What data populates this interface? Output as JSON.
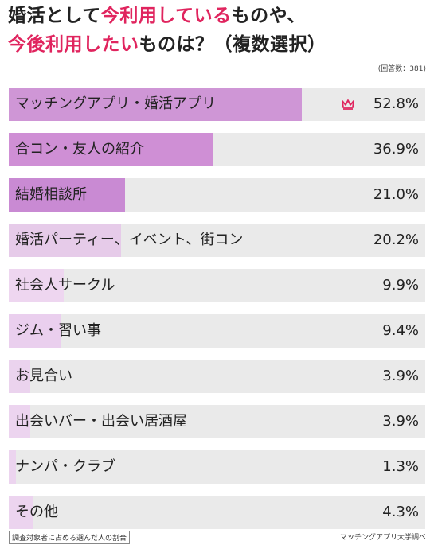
{
  "title": {
    "line1_pre": "婚活として",
    "line1_highlight": "今利用している",
    "line1_post": "ものや、",
    "line2_highlight": "今後利用したい",
    "line2_post": "ものは？（複数選択）"
  },
  "respondents_note": "(回答数：381)",
  "footnote": "調査対象者に占める選んだ人の割合",
  "source": "マッチングアプリ大学調べ",
  "colors": {
    "highlight": "#e0245e",
    "bar_fills": [
      "#cf96d6",
      "#cf8fd5",
      "#c98ad3",
      "#e6cbe9",
      "#eed6f0",
      "#eacfee",
      "#ebd3ee",
      "#ecd4ef",
      "#ecd4ef",
      "#ecd4ef"
    ],
    "bar_bg": "#eaeaea",
    "crown": "#e0245e"
  },
  "chart_data": {
    "type": "bar",
    "orientation": "horizontal",
    "categories": [
      "マッチングアプリ・婚活アプリ",
      "合コン・友人の紹介",
      "結婚相談所",
      "婚活パーティー、イベント、街コン",
      "社会人サークル",
      "ジム・習い事",
      "お見合い",
      "出会いバー・出会い居酒屋",
      "ナンパ・クラブ",
      "その他"
    ],
    "values": [
      52.8,
      36.9,
      21.0,
      20.2,
      9.9,
      9.4,
      3.9,
      3.9,
      1.3,
      4.3
    ],
    "value_labels": [
      "52.8%",
      "36.9%",
      "21.0%",
      "20.2%",
      "9.9%",
      "9.4%",
      "3.9%",
      "3.9%",
      "1.3%",
      "4.3%"
    ],
    "xlim": [
      0,
      75
    ],
    "top_marker_icon": "crown-icon"
  }
}
